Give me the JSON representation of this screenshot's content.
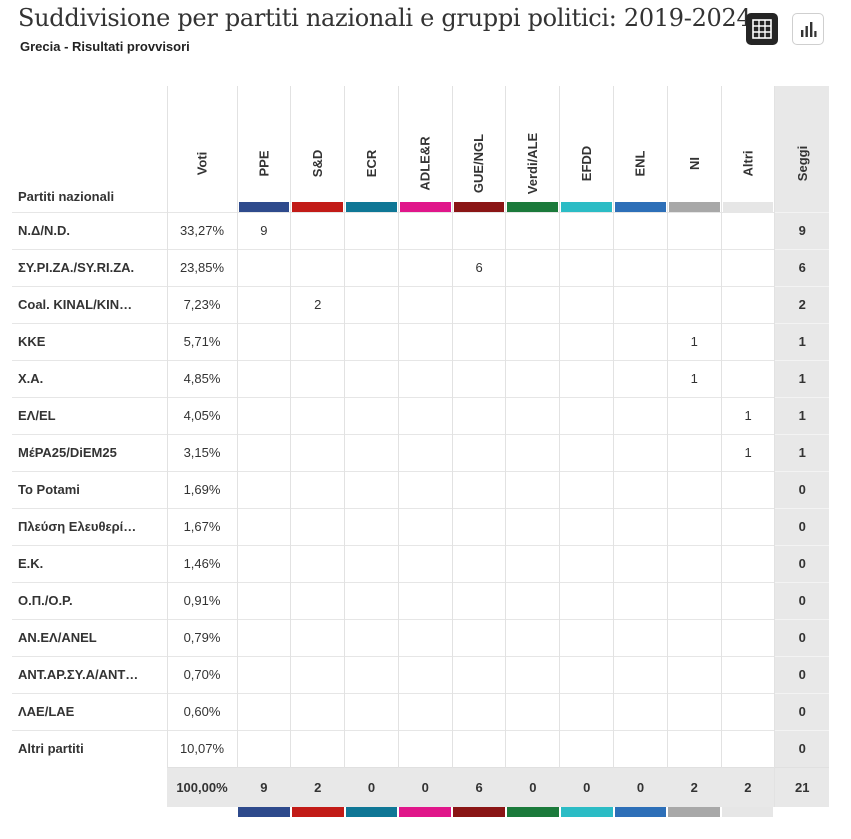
{
  "header": {
    "title": "Suddivisione per partiti nazionali e gruppi politici: 2019-2024",
    "subtitle": "Grecia - Risultati provvisori"
  },
  "toolbar": {
    "table_view_icon": "grid-table-icon",
    "chart_view_icon": "bar-chart-icon"
  },
  "columns": {
    "party": "Partiti nazionali",
    "votes": "Voti",
    "seats": "Seggi",
    "groups": [
      {
        "label": "PPE",
        "color": "#2e4a8c"
      },
      {
        "label": "S&D",
        "color": "#c21b17"
      },
      {
        "label": "ECR",
        "color": "#0f7796"
      },
      {
        "label": "ADLE&R",
        "color": "#e0168a"
      },
      {
        "label": "GUE/NGL",
        "color": "#8a1515"
      },
      {
        "label": "Verdi/ALE",
        "color": "#1b7a3b"
      },
      {
        "label": "EFDD",
        "color": "#2bbcc5"
      },
      {
        "label": "ENL",
        "color": "#2d6fb8"
      },
      {
        "label": "NI",
        "color": "#a8a8a8"
      },
      {
        "label": "Altri",
        "color": "#e6e6e6"
      }
    ]
  },
  "rows": [
    {
      "party": "N.Δ/N.D.",
      "votes": "33,27%",
      "groups": [
        "9",
        "",
        "",
        "",
        "",
        "",
        "",
        "",
        "",
        ""
      ],
      "seats": "9"
    },
    {
      "party": "ΣΥ.ΡΙ.ΖΑ./SY.RI.ZA.",
      "votes": "23,85%",
      "groups": [
        "",
        "",
        "",
        "",
        "6",
        "",
        "",
        "",
        "",
        ""
      ],
      "seats": "6"
    },
    {
      "party": "Coal. KINAL/KIN…",
      "votes": "7,23%",
      "groups": [
        "",
        "2",
        "",
        "",
        "",
        "",
        "",
        "",
        "",
        ""
      ],
      "seats": "2"
    },
    {
      "party": "KKE",
      "votes": "5,71%",
      "groups": [
        "",
        "",
        "",
        "",
        "",
        "",
        "",
        "",
        "1",
        ""
      ],
      "seats": "1"
    },
    {
      "party": "Χ.Α.",
      "votes": "4,85%",
      "groups": [
        "",
        "",
        "",
        "",
        "",
        "",
        "",
        "",
        "1",
        ""
      ],
      "seats": "1"
    },
    {
      "party": "ΕΛ/EL",
      "votes": "4,05%",
      "groups": [
        "",
        "",
        "",
        "",
        "",
        "",
        "",
        "",
        "",
        "1"
      ],
      "seats": "1"
    },
    {
      "party": "ΜέΡΑ25/DiEM25",
      "votes": "3,15%",
      "groups": [
        "",
        "",
        "",
        "",
        "",
        "",
        "",
        "",
        "",
        "1"
      ],
      "seats": "1"
    },
    {
      "party": "To Potami",
      "votes": "1,69%",
      "groups": [
        "",
        "",
        "",
        "",
        "",
        "",
        "",
        "",
        "",
        ""
      ],
      "seats": "0"
    },
    {
      "party": "Πλεύση Ελευθερί…",
      "votes": "1,67%",
      "groups": [
        "",
        "",
        "",
        "",
        "",
        "",
        "",
        "",
        "",
        ""
      ],
      "seats": "0"
    },
    {
      "party": "Ε.Κ.",
      "votes": "1,46%",
      "groups": [
        "",
        "",
        "",
        "",
        "",
        "",
        "",
        "",
        "",
        ""
      ],
      "seats": "0"
    },
    {
      "party": "Ο.Π./O.P.",
      "votes": "0,91%",
      "groups": [
        "",
        "",
        "",
        "",
        "",
        "",
        "",
        "",
        "",
        ""
      ],
      "seats": "0"
    },
    {
      "party": "ΑΝ.ΕΛ/ANEL",
      "votes": "0,79%",
      "groups": [
        "",
        "",
        "",
        "",
        "",
        "",
        "",
        "",
        "",
        ""
      ],
      "seats": "0"
    },
    {
      "party": "ΑΝΤ.ΑΡ.ΣΥ.Α/ΑΝΤ…",
      "votes": "0,70%",
      "groups": [
        "",
        "",
        "",
        "",
        "",
        "",
        "",
        "",
        "",
        ""
      ],
      "seats": "0"
    },
    {
      "party": "ΛΑΕ/LAE",
      "votes": "0,60%",
      "groups": [
        "",
        "",
        "",
        "",
        "",
        "",
        "",
        "",
        "",
        ""
      ],
      "seats": "0"
    },
    {
      "party": "Altri partiti",
      "votes": "10,07%",
      "groups": [
        "",
        "",
        "",
        "",
        "",
        "",
        "",
        "",
        "",
        ""
      ],
      "seats": "0"
    }
  ],
  "totals": {
    "votes": "100,00%",
    "groups": [
      "9",
      "2",
      "0",
      "0",
      "6",
      "0",
      "0",
      "0",
      "2",
      "2"
    ],
    "seats": "21"
  }
}
